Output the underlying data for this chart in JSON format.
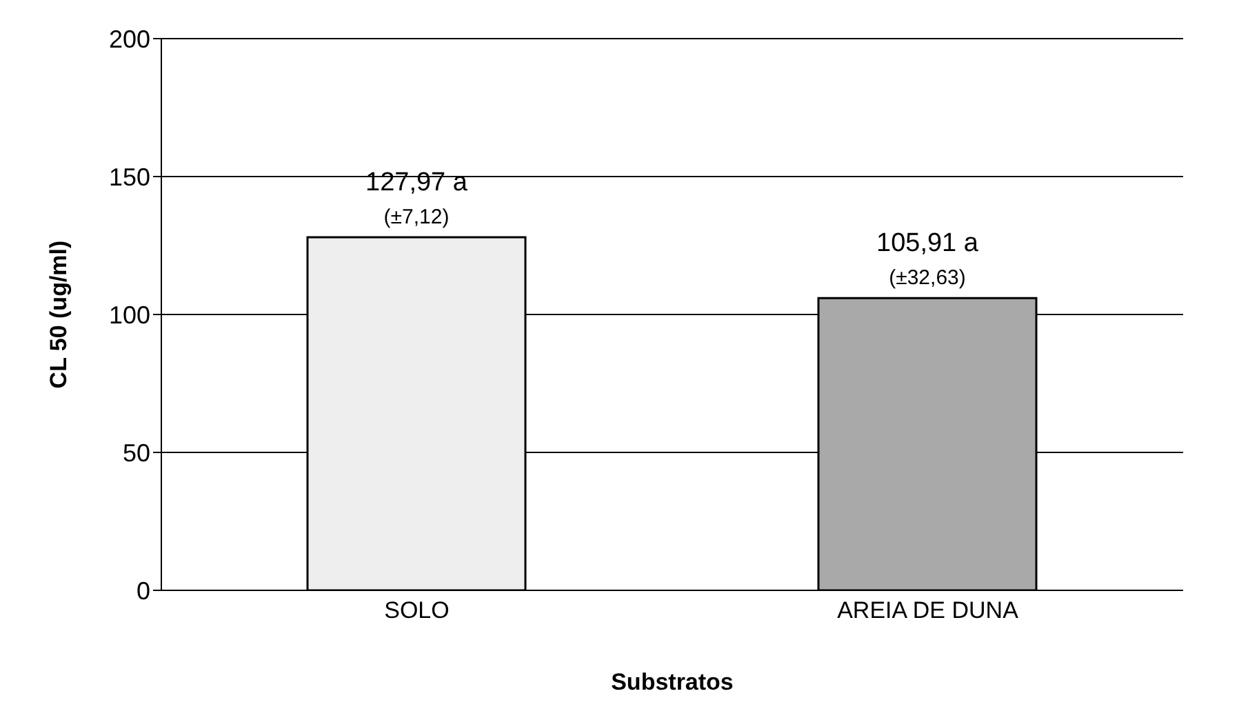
{
  "chart_data": {
    "type": "bar",
    "xlabel": "Substratos",
    "ylabel": "CL 50 (ug/ml)",
    "categories": [
      "SOLO",
      "AREIA DE DUNA"
    ],
    "values": [
      127.97,
      105.91
    ],
    "colors": [
      "#eeeeee",
      "#a9a9a9"
    ],
    "value_labels": [
      "127,97 a",
      "105,91 a"
    ],
    "annotations": [
      {
        "text": "(±7,12)",
        "x": "SOLO",
        "y": 127.97
      },
      {
        "text": "(±32,63)",
        "x": "AREIA DE DUNA",
        "y": 105.91
      }
    ],
    "ylim": [
      0,
      200
    ],
    "yticks": [
      0,
      50,
      100,
      150,
      200
    ],
    "grid": "y",
    "legend": false
  }
}
